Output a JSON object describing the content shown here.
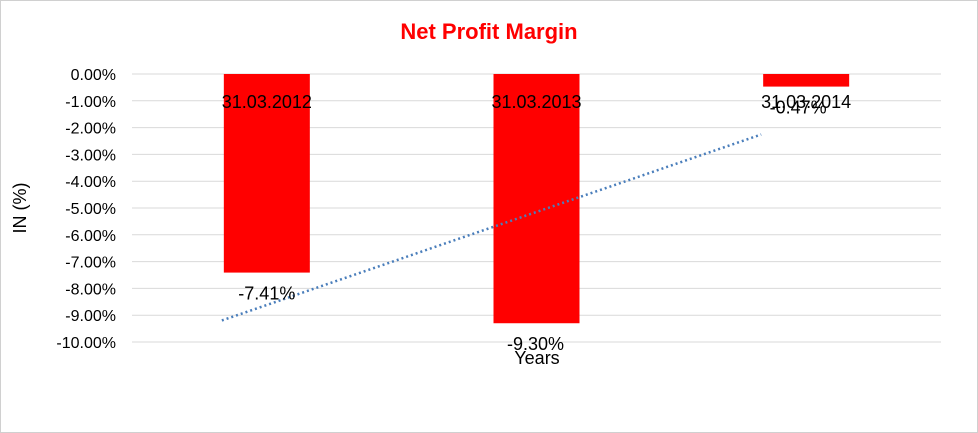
{
  "chart_data": {
    "type": "bar",
    "title": "Net Profit Margin",
    "xlabel": "Years",
    "ylabel": "IN (%)",
    "categories": [
      "31.03.2012",
      "31.03.2013",
      "31.03.2014"
    ],
    "series": [
      {
        "values": [
          -7.41,
          -9.3,
          -0.47
        ],
        "data_labels": [
          "-7.41%",
          "-9.30%",
          "-0.47%"
        ],
        "color": "#ff0000"
      }
    ],
    "trendline": {
      "type": "linear",
      "style": "dotted",
      "color": "#4a7ebb"
    },
    "ylim": [
      -10,
      0
    ],
    "yticks": [
      0,
      -1,
      -2,
      -3,
      -4,
      -5,
      -6,
      -7,
      -8,
      -9,
      -10
    ],
    "ytick_labels": [
      "0.00%",
      "-1.00%",
      "-2.00%",
      "-3.00%",
      "-4.00%",
      "-5.00%",
      "-6.00%",
      "-7.00%",
      "-8.00%",
      "-9.00%",
      "-10.00%"
    ],
    "grid": true,
    "legend": "none"
  }
}
